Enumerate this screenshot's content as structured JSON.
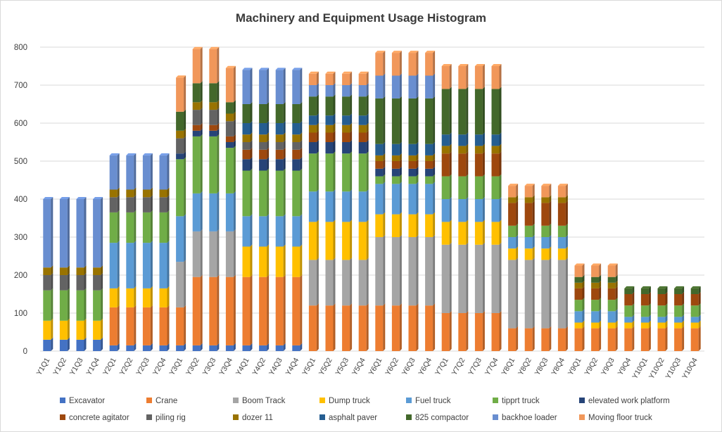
{
  "chart_data": {
    "type": "bar",
    "stacked": true,
    "title": "Machinery and Equipment Usage Histogram",
    "ylim": [
      0,
      800
    ],
    "yticks": [
      0,
      100,
      200,
      300,
      400,
      500,
      600,
      700,
      800
    ],
    "grid": true,
    "legend_position": "bottom",
    "categories": [
      "Y1Q1",
      "Y1Q2",
      "Y1Q3",
      "Y1Q4",
      "Y2Q1",
      "Y2Q2",
      "Y2Q3",
      "Y2Q4",
      "Y3Q1",
      "Y3Q2",
      "Y3Q3",
      "Y3Q4",
      "Y4Q1",
      "Y4Q2",
      "Y4Q3",
      "Y4Q4",
      "Y5Q1",
      "Y5Q2",
      "Y5Q3",
      "Y5Q4",
      "Y6Q1",
      "Y6Q2",
      "Y6Q3",
      "Y6Q4",
      "Y7Q1",
      "Y7Q2",
      "Y7Q3",
      "Y7Q4",
      "Y8Q1",
      "Y8Q2",
      "Y8Q3",
      "Y8Q4",
      "Y9Q1",
      "Y9Q2",
      "Y9Q3",
      "Y9Q4",
      "Y10Q1",
      "Y10Q2",
      "Y10Q3",
      "Y10Q4"
    ],
    "series": [
      {
        "name": "Excavator",
        "color": "#4472C4",
        "values": [
          30,
          30,
          30,
          30,
          15,
          15,
          15,
          15,
          15,
          15,
          15,
          15,
          15,
          15,
          15,
          15,
          0,
          0,
          0,
          0,
          0,
          0,
          0,
          0,
          0,
          0,
          0,
          0,
          0,
          0,
          0,
          0,
          0,
          0,
          0,
          0,
          0,
          0,
          0,
          0
        ]
      },
      {
        "name": "Crane",
        "color": "#ED7D31",
        "values": [
          0,
          0,
          0,
          0,
          100,
          100,
          100,
          100,
          100,
          180,
          180,
          180,
          180,
          180,
          180,
          180,
          120,
          120,
          120,
          120,
          120,
          120,
          120,
          120,
          100,
          100,
          100,
          100,
          60,
          60,
          60,
          60,
          60,
          60,
          60,
          60,
          60,
          60,
          60,
          60
        ]
      },
      {
        "name": "Boom Track",
        "color": "#A5A5A5",
        "values": [
          0,
          0,
          0,
          0,
          0,
          0,
          0,
          0,
          120,
          120,
          120,
          120,
          0,
          0,
          0,
          0,
          120,
          120,
          120,
          120,
          180,
          180,
          180,
          180,
          180,
          180,
          180,
          180,
          180,
          180,
          180,
          180,
          0,
          0,
          0,
          0,
          0,
          0,
          0,
          0
        ]
      },
      {
        "name": "Dump truck",
        "color": "#FFC000",
        "values": [
          50,
          50,
          50,
          50,
          50,
          50,
          50,
          50,
          0,
          0,
          0,
          0,
          80,
          80,
          80,
          80,
          100,
          100,
          100,
          100,
          60,
          60,
          60,
          60,
          60,
          60,
          60,
          60,
          30,
          30,
          30,
          30,
          15,
          15,
          15,
          15,
          15,
          15,
          15,
          15
        ]
      },
      {
        "name": "Fuel truck",
        "color": "#5B9BD5",
        "values": [
          0,
          0,
          0,
          0,
          120,
          120,
          120,
          120,
          120,
          100,
          100,
          100,
          80,
          80,
          80,
          80,
          80,
          80,
          80,
          80,
          80,
          80,
          80,
          80,
          60,
          60,
          60,
          60,
          30,
          30,
          30,
          30,
          30,
          30,
          30,
          15,
          15,
          15,
          15,
          15
        ]
      },
      {
        "name": "tipprt truck",
        "color": "#70AD47",
        "values": [
          80,
          80,
          80,
          80,
          80,
          80,
          80,
          80,
          150,
          150,
          150,
          120,
          120,
          120,
          120,
          120,
          100,
          100,
          100,
          100,
          20,
          20,
          20,
          20,
          60,
          60,
          60,
          60,
          30,
          30,
          30,
          30,
          30,
          30,
          30,
          30,
          30,
          30,
          30,
          30
        ]
      },
      {
        "name": "elevated work platform",
        "color": "#264478",
        "values": [
          0,
          0,
          0,
          0,
          0,
          0,
          0,
          0,
          15,
          15,
          15,
          15,
          30,
          30,
          30,
          30,
          30,
          30,
          30,
          30,
          20,
          20,
          20,
          20,
          0,
          0,
          0,
          0,
          0,
          0,
          0,
          0,
          0,
          0,
          0,
          0,
          0,
          0,
          0,
          0
        ]
      },
      {
        "name": "concrete agitator",
        "color": "#9E480E",
        "values": [
          0,
          0,
          0,
          0,
          0,
          0,
          0,
          0,
          0,
          15,
          15,
          15,
          25,
          25,
          25,
          25,
          25,
          25,
          25,
          25,
          20,
          20,
          20,
          20,
          60,
          60,
          60,
          60,
          60,
          60,
          60,
          60,
          30,
          30,
          30,
          30,
          30,
          30,
          30,
          30
        ]
      },
      {
        "name": "piling rig",
        "color": "#636363",
        "values": [
          40,
          40,
          40,
          40,
          40,
          40,
          40,
          40,
          40,
          40,
          40,
          40,
          20,
          20,
          20,
          20,
          0,
          0,
          0,
          0,
          0,
          0,
          0,
          0,
          0,
          0,
          0,
          0,
          0,
          0,
          0,
          0,
          0,
          0,
          0,
          0,
          0,
          0,
          0,
          0
        ]
      },
      {
        "name": "dozer 11",
        "color": "#997300",
        "values": [
          20,
          20,
          20,
          20,
          20,
          20,
          20,
          20,
          20,
          20,
          20,
          20,
          20,
          20,
          20,
          20,
          20,
          20,
          20,
          20,
          15,
          15,
          15,
          15,
          20,
          20,
          20,
          20,
          15,
          15,
          15,
          15,
          15,
          15,
          15,
          0,
          0,
          0,
          0,
          0
        ]
      },
      {
        "name": "asphalt paver",
        "color": "#255E91",
        "values": [
          0,
          0,
          0,
          0,
          0,
          0,
          0,
          0,
          0,
          0,
          0,
          0,
          30,
          30,
          30,
          30,
          25,
          25,
          25,
          25,
          30,
          30,
          30,
          30,
          30,
          30,
          30,
          30,
          0,
          0,
          0,
          0,
          0,
          0,
          0,
          0,
          0,
          0,
          0,
          0
        ]
      },
      {
        "name": "825 compactor",
        "color": "#43682B",
        "values": [
          0,
          0,
          0,
          0,
          0,
          0,
          0,
          0,
          50,
          50,
          50,
          30,
          50,
          50,
          50,
          50,
          50,
          50,
          50,
          50,
          120,
          120,
          120,
          120,
          120,
          120,
          120,
          120,
          0,
          0,
          0,
          0,
          15,
          15,
          15,
          15,
          15,
          15,
          15,
          15
        ]
      },
      {
        "name": "backhoe loader",
        "color": "#698ED0",
        "values": [
          180,
          180,
          180,
          180,
          90,
          90,
          90,
          90,
          0,
          0,
          0,
          0,
          90,
          90,
          90,
          90,
          30,
          30,
          30,
          30,
          60,
          60,
          60,
          60,
          0,
          0,
          0,
          0,
          0,
          0,
          0,
          0,
          0,
          0,
          0,
          0,
          0,
          0,
          0,
          0
        ]
      },
      {
        "name": "Moving floor truck",
        "color": "#F1975A",
        "values": [
          0,
          0,
          0,
          0,
          0,
          0,
          0,
          0,
          90,
          90,
          90,
          90,
          0,
          0,
          0,
          0,
          30,
          30,
          30,
          30,
          60,
          60,
          60,
          60,
          60,
          60,
          60,
          60,
          30,
          30,
          30,
          30,
          30,
          30,
          30,
          0,
          0,
          0,
          0,
          0
        ]
      }
    ]
  }
}
